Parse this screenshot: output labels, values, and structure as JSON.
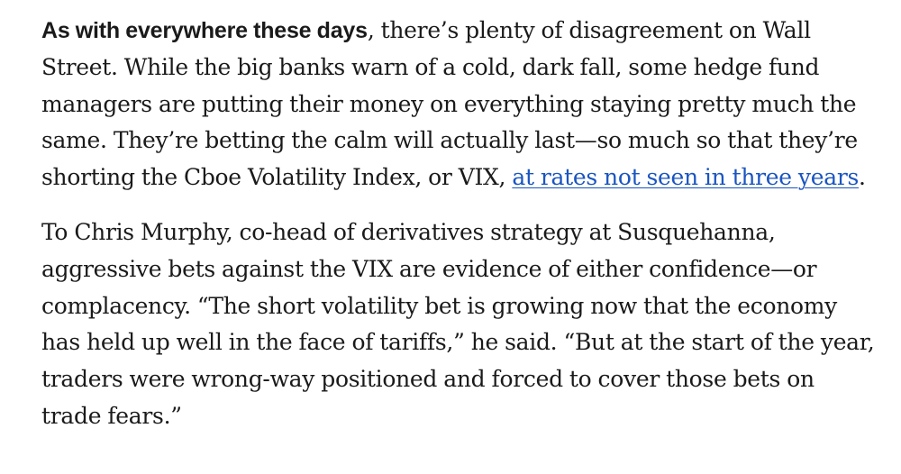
{
  "article": {
    "paragraph_1": {
      "lead_in": "As with everywhere these days",
      "text_before_link": ", there’s plenty of disagreement on Wall Street. While the big banks warn of a cold, dark fall, some hedge fund managers are putting their money on everything staying pretty much the same. They’re betting the calm will actually last—so much so that they’re shorting the Cboe Volatility Index, or VIX, ",
      "link_text": "at rates not seen in three years",
      "text_after_link": "."
    },
    "paragraph_2": {
      "text": "To Chris Murphy, co-head of derivatives strategy at Susquehanna, aggressive bets against the VIX are evidence of either confidence—or complacency. “The short volatility bet is growing now that the economy has held up well in the face of tariffs,” he said. “But at the start of the year, traders were wrong-way positioned and forced to cover those bets on trade fears.”"
    }
  },
  "colors": {
    "text": "#1a1a1a",
    "link": "#1a55c0",
    "background": "#ffffff"
  }
}
